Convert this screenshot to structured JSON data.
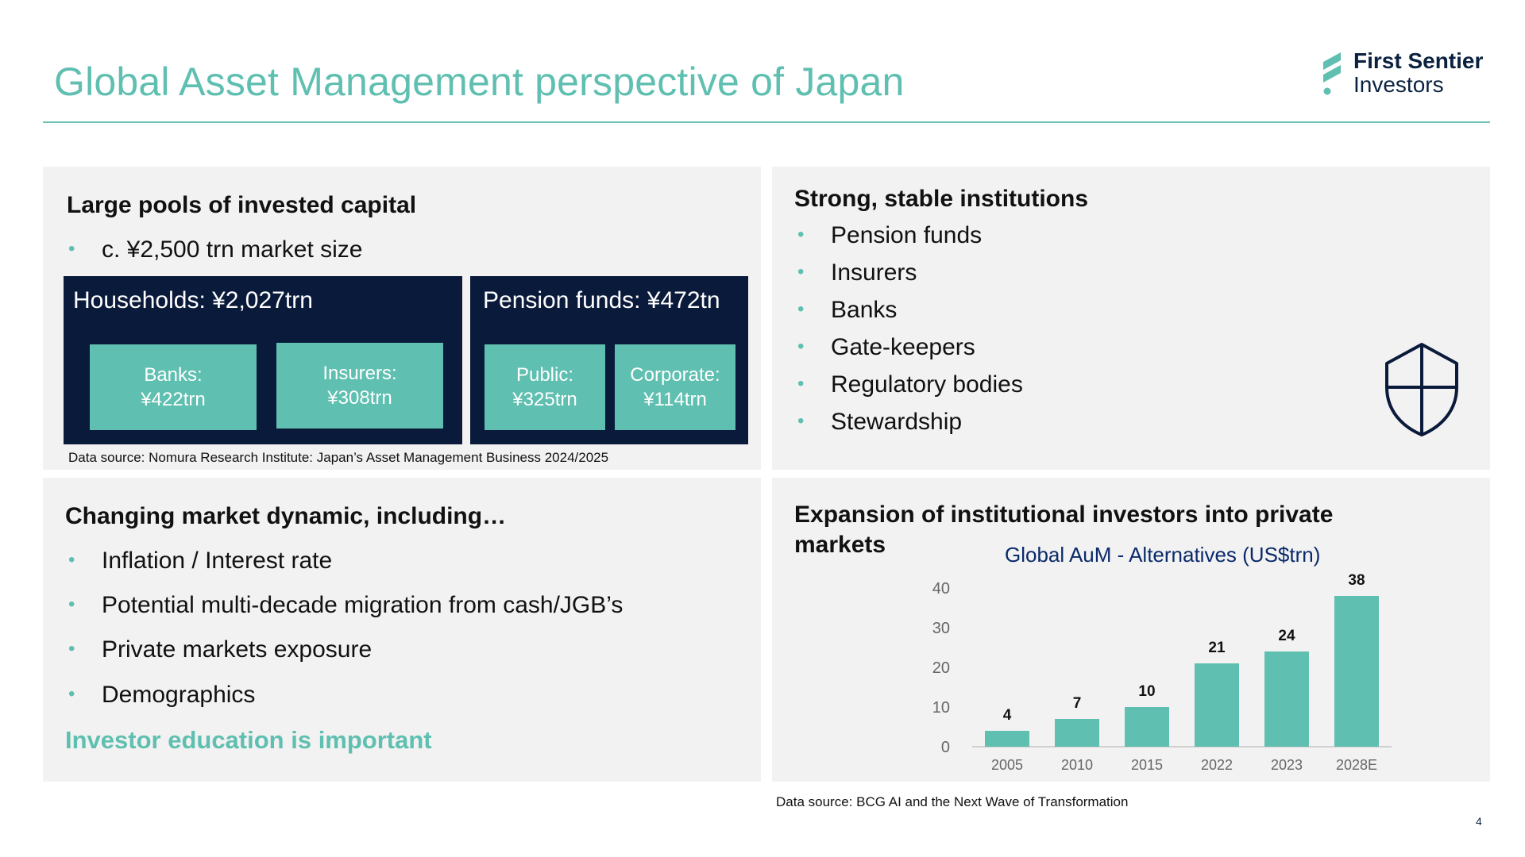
{
  "title": "Global Asset Management perspective of Japan",
  "logo": {
    "line1": "First Sentier",
    "line2": "Investors"
  },
  "panel1": {
    "heading": "Large pools of invested capital",
    "bullet": "c. ¥2,500 trn market size",
    "households": {
      "label": "Households: ¥2,027trn",
      "banks": {
        "line1": "Banks:",
        "line2": "¥422trn"
      },
      "insurers": {
        "line1": "Insurers:",
        "line2": "¥308trn"
      }
    },
    "pension": {
      "label": "Pension funds: ¥472tn",
      "public": {
        "line1": "Public:",
        "line2": "¥325trn"
      },
      "corporate": {
        "line1": "Corporate:",
        "line2": "¥114trn"
      }
    },
    "source": "Data source: Nomura Research Institute: Japan’s Asset Management Business 2024/2025"
  },
  "panel2": {
    "heading": "Strong, stable institutions",
    "bullets": [
      "Pension funds",
      "Insurers",
      "Banks",
      "Gate-keepers",
      "Regulatory bodies",
      "Stewardship"
    ],
    "icon": "shield-icon"
  },
  "panel3": {
    "heading": "Changing market dynamic, including…",
    "bullets": [
      "Inflation / Interest rate",
      "Potential multi-decade migration from cash/JGB’s",
      "Private markets exposure",
      "Demographics"
    ],
    "highlight": "Investor education is important"
  },
  "panel4": {
    "heading_line1": "Expansion of institutional investors into private",
    "heading_line2": "markets"
  },
  "chart_data": {
    "type": "bar",
    "title": "Global AuM - Alternatives (US$trn)",
    "categories": [
      "2005",
      "2010",
      "2015",
      "2022",
      "2023",
      "2028E"
    ],
    "values": [
      4,
      7,
      10,
      21,
      24,
      38
    ],
    "ylim": [
      0,
      40
    ],
    "yticks": [
      0,
      10,
      20,
      30,
      40
    ],
    "grid": false,
    "bar_color": "#5fbfb0"
  },
  "chart_source": "Data source: BCG AI and the Next Wave of Transformation",
  "page_number": "4",
  "colors": {
    "accent": "#5fbfb0",
    "navy": "#0a1a3a",
    "brand": "#0a2240"
  }
}
